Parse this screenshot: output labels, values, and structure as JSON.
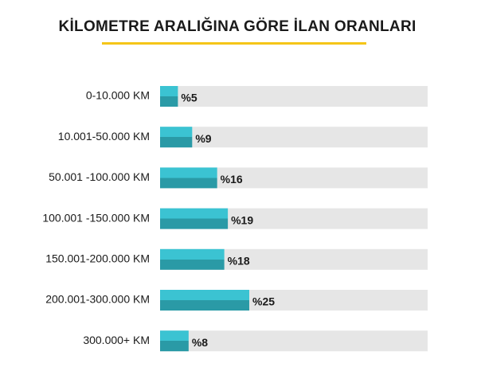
{
  "chart_data": {
    "type": "hbar",
    "title": "KİLOMETRE ARALIĞINA GÖRE İLAN ORANLARI",
    "categories": [
      "0-10.000 KM",
      "10.001-50.000 KM",
      "50.001 -100.000 KM",
      "100.001 -150.000 KM",
      "150.001-200.000 KM",
      "200.001-300.000 KM",
      "300.000+ KM"
    ],
    "values": [
      5,
      9,
      16,
      19,
      18,
      25,
      8
    ],
    "value_labels": [
      "%5",
      "%9",
      "%16",
      "%19",
      "%18",
      "%25",
      "%8"
    ],
    "xlim": [
      0,
      75
    ],
    "color": "#3bbfcf"
  }
}
